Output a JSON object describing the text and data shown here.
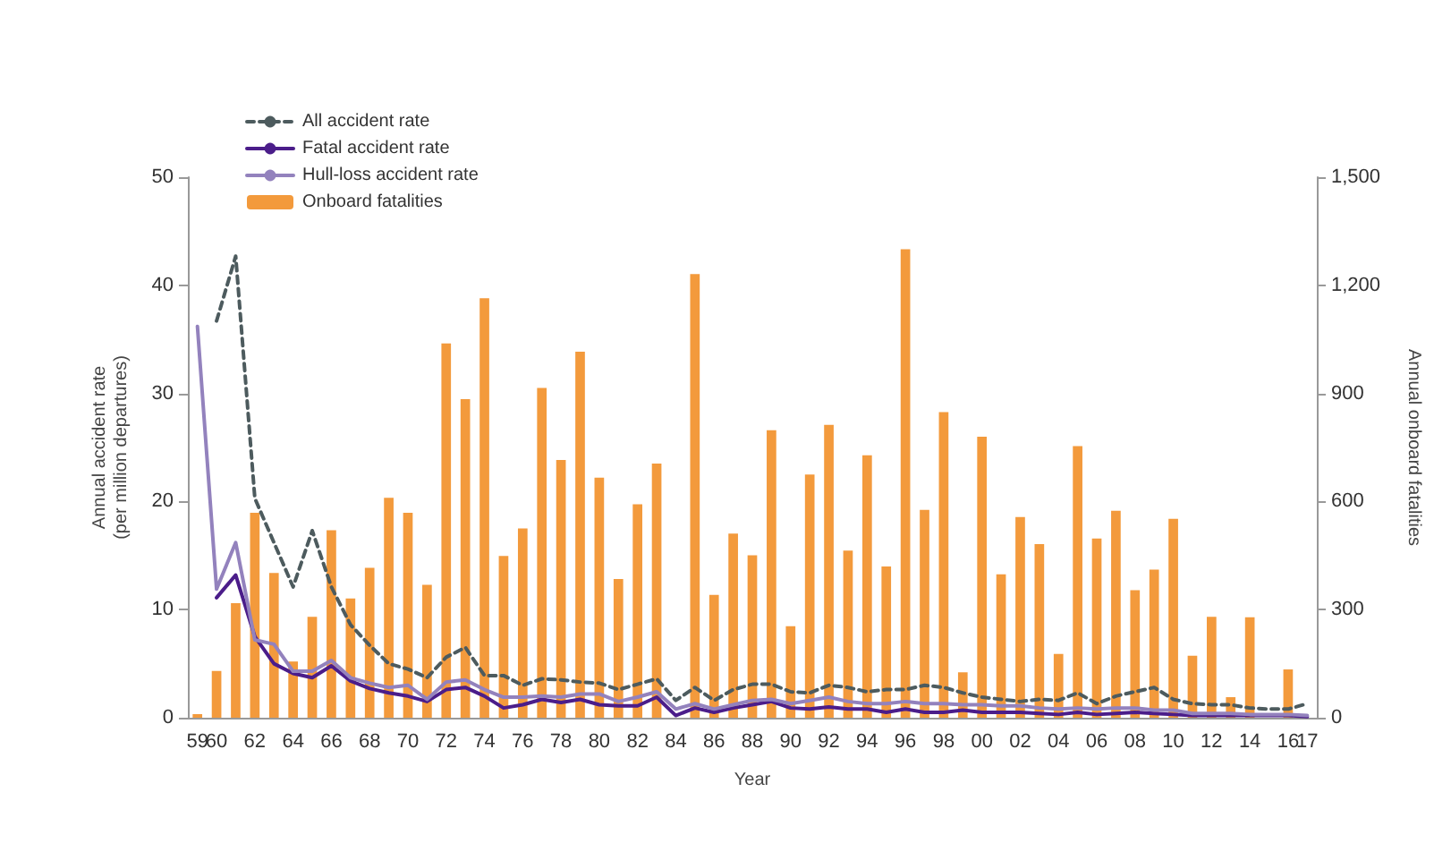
{
  "chart_data": {
    "type": "bar",
    "xlabel": "Year",
    "ylabel": "Annual accident rate\n(per million departures)",
    "y2label": "Annual onboard fatalities",
    "categories": [
      "59",
      "60",
      null,
      "62",
      null,
      "64",
      null,
      "66",
      null,
      "68",
      null,
      "70",
      null,
      "72",
      null,
      "74",
      null,
      "76",
      null,
      "78",
      null,
      "80",
      null,
      "82",
      null,
      "84",
      null,
      "86",
      null,
      "88",
      null,
      "90",
      null,
      "92",
      null,
      "94",
      null,
      "96",
      null,
      "98",
      null,
      "00",
      null,
      "02",
      null,
      "04",
      null,
      "06",
      null,
      "08",
      null,
      "10",
      null,
      "12",
      null,
      "14",
      null,
      "16",
      "17"
    ],
    "series": [
      {
        "name": "All accident rate",
        "type": "line",
        "line_style": "dashed",
        "color": "#4d5b5e",
        "values": [
          null,
          36.7,
          42.7,
          20.3,
          16.2,
          12.1,
          17.3,
          12.1,
          8.6,
          6.7,
          5.0,
          4.5,
          3.7,
          5.6,
          6.5,
          3.9,
          3.9,
          3.0,
          3.6,
          3.5,
          3.3,
          3.2,
          2.6,
          3.1,
          3.6,
          1.6,
          2.8,
          1.6,
          2.6,
          3.1,
          3.1,
          2.4,
          2.3,
          3.0,
          2.8,
          2.4,
          2.6,
          2.6,
          3.0,
          2.8,
          2.3,
          1.9,
          1.7,
          1.5,
          1.7,
          1.6,
          2.3,
          1.3,
          2.0,
          2.4,
          2.8,
          1.7,
          1.3,
          1.2,
          1.2,
          0.9,
          0.8,
          0.8,
          1.3
        ]
      },
      {
        "name": "Fatal accident rate",
        "type": "line",
        "line_style": "solid",
        "color": "#4b1d8a",
        "values": [
          null,
          11.1,
          13.2,
          7.5,
          5.0,
          4.1,
          3.7,
          4.8,
          3.4,
          2.7,
          2.3,
          2.0,
          1.5,
          2.6,
          2.8,
          2.0,
          0.9,
          1.2,
          1.7,
          1.4,
          1.7,
          1.2,
          1.1,
          1.1,
          1.9,
          0.2,
          0.9,
          0.5,
          0.9,
          1.2,
          1.5,
          0.9,
          0.8,
          1.0,
          0.8,
          0.8,
          0.5,
          0.8,
          0.5,
          0.5,
          0.7,
          0.5,
          0.5,
          0.5,
          0.4,
          0.3,
          0.5,
          0.3,
          0.4,
          0.5,
          0.4,
          0.3,
          0.2,
          0.2,
          0.2,
          0.2,
          0.2,
          0.2,
          0.1
        ]
      },
      {
        "name": "Hull-loss accident rate",
        "type": "line",
        "line_style": "solid",
        "color": "#9382bd",
        "values": [
          36.2,
          11.9,
          16.2,
          7.2,
          6.8,
          4.3,
          4.3,
          5.3,
          3.7,
          3.2,
          2.8,
          3.0,
          1.7,
          3.3,
          3.5,
          2.6,
          1.9,
          1.9,
          2.0,
          1.9,
          2.2,
          2.2,
          1.5,
          1.9,
          2.4,
          0.8,
          1.3,
          0.8,
          1.2,
          1.6,
          1.7,
          1.3,
          1.6,
          1.9,
          1.5,
          1.3,
          1.3,
          1.5,
          1.3,
          1.3,
          1.2,
          1.2,
          1.1,
          1.1,
          0.9,
          0.8,
          0.9,
          0.8,
          0.9,
          0.9,
          0.7,
          0.7,
          0.4,
          0.4,
          0.4,
          0.3,
          0.3,
          0.3,
          0.2
        ]
      },
      {
        "name": "Onboard fatalities",
        "axis": "y2",
        "color": "#f39a3c",
        "values": [
          10,
          130,
          318,
          569,
          402,
          156,
          280,
          520,
          331,
          416,
          610,
          569,
          369,
          1039,
          884,
          1164,
          449,
          525,
          915,
          715,
          1016,
          666,
          385,
          592,
          705,
          null,
          1231,
          341,
          511,
          451,
          798,
          254,
          675,
          813,
          464,
          728,
          420,
          1300,
          577,
          848,
          126,
          780,
          398,
          557,
          482,
          177,
          754,
          497,
          574,
          354,
          411,
          552,
          172,
          280,
          57,
          279,
          null,
          134,
          null
        ]
      }
    ],
    "ylim": [
      0,
      50
    ],
    "yticks": [
      0,
      10,
      20,
      30,
      40,
      50
    ],
    "y2lim": [
      0,
      1500
    ],
    "y2ticks": [
      0,
      {
        "value": 300,
        "label": "300"
      },
      {
        "value": 600,
        "label": "600"
      },
      {
        "value": 900,
        "label": "900"
      },
      {
        "value": 1200,
        "label": "1,200"
      },
      {
        "value": 1500,
        "label": "1,500"
      }
    ],
    "grid": false,
    "legend": "top left",
    "marker": "none"
  }
}
